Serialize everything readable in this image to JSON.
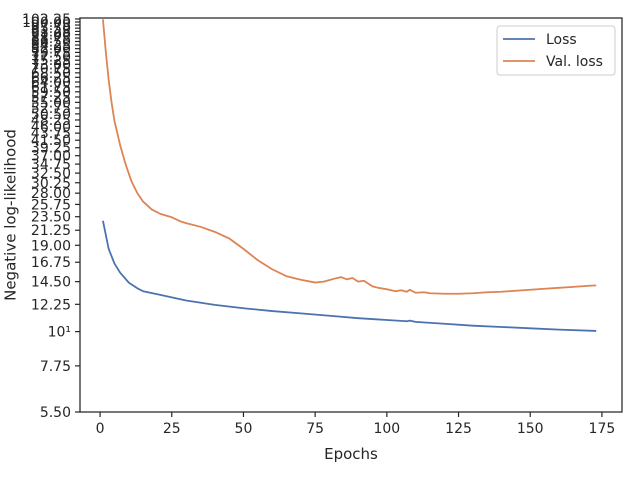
{
  "chart_data": {
    "type": "line",
    "title": "",
    "xlabel": "Epochs",
    "ylabel": "Negative log-likelihood",
    "xlim": [
      -7,
      182
    ],
    "ylim": [
      5.5,
      103
    ],
    "yscale": "log",
    "x_ticks": [
      0,
      25,
      50,
      75,
      100,
      125,
      150,
      175
    ],
    "y_tick_labels": [
      "5.50",
      "7.75",
      "10¹",
      "12.25",
      "14.50",
      "16.75",
      "19.00",
      "21.25",
      "23.50",
      "25.75",
      "28.00",
      "30.25",
      "32.50",
      "34.75",
      "37.00",
      "39.25",
      "41.50",
      "43.75",
      "46.00",
      "48.25",
      "50.50",
      "52.75",
      "55.00",
      "57.25",
      "59.50",
      "61.75",
      "64.00",
      "66.25",
      "68.50",
      "70.75",
      "73.00",
      "75.25",
      "77.50",
      "79.75",
      "82.00",
      "84.25",
      "86.50",
      "88.75",
      "91.00",
      "93.25",
      "95.50",
      "97.75",
      "100.00",
      "102.25"
    ],
    "y_tick_values": [
      5.5,
      7.75,
      10,
      12.25,
      14.5,
      16.75,
      19,
      21.25,
      23.5,
      25.75,
      28,
      30.25,
      32.5,
      34.75,
      37,
      39.25,
      41.5,
      43.75,
      46,
      48.25,
      50.5,
      52.75,
      55,
      57.25,
      59.5,
      61.75,
      64,
      66.25,
      68.5,
      70.75,
      73,
      75.25,
      77.5,
      79.75,
      82,
      84.25,
      86.5,
      88.75,
      91,
      93.25,
      95.5,
      97.75,
      100,
      102.25
    ],
    "legend_position": "top-right",
    "grid": false,
    "series": [
      {
        "name": "Loss",
        "color": "#4c72b0",
        "x": [
          1,
          3,
          5,
          7,
          10,
          13,
          15,
          20,
          25,
          30,
          40,
          50,
          60,
          70,
          80,
          90,
          100,
          107,
          108,
          110,
          120,
          130,
          140,
          150,
          160,
          173
        ],
        "y": [
          22.8,
          18.5,
          16.6,
          15.5,
          14.4,
          13.8,
          13.5,
          13.2,
          12.9,
          12.6,
          12.2,
          11.9,
          11.65,
          11.45,
          11.25,
          11.05,
          10.9,
          10.8,
          10.85,
          10.75,
          10.6,
          10.45,
          10.35,
          10.25,
          10.15,
          10.05
        ]
      },
      {
        "name": "Val. loss",
        "color": "#dd8452",
        "x": [
          1,
          2,
          3,
          4,
          5,
          7,
          9,
          11,
          13,
          15,
          18,
          21,
          25,
          28,
          30,
          35,
          40,
          45,
          50,
          55,
          60,
          65,
          70,
          75,
          78,
          82,
          84,
          86,
          88,
          90,
          92,
          95,
          97,
          100,
          103,
          105,
          107,
          108,
          110,
          113,
          115,
          120,
          125,
          130,
          135,
          140,
          145,
          150,
          155,
          160,
          165,
          170,
          173
        ],
        "y": [
          102.0,
          80.0,
          65.0,
          55.0,
          48.0,
          40.0,
          34.5,
          30.5,
          28.0,
          26.3,
          24.8,
          24.0,
          23.4,
          22.7,
          22.4,
          21.8,
          21.0,
          20.0,
          18.5,
          17.0,
          15.9,
          15.1,
          14.7,
          14.4,
          14.5,
          14.85,
          15.0,
          14.75,
          14.9,
          14.5,
          14.6,
          14.0,
          13.85,
          13.7,
          13.5,
          13.6,
          13.45,
          13.65,
          13.35,
          13.4,
          13.3,
          13.25,
          13.25,
          13.3,
          13.4,
          13.45,
          13.55,
          13.65,
          13.75,
          13.85,
          13.95,
          14.05,
          14.1
        ]
      }
    ]
  }
}
